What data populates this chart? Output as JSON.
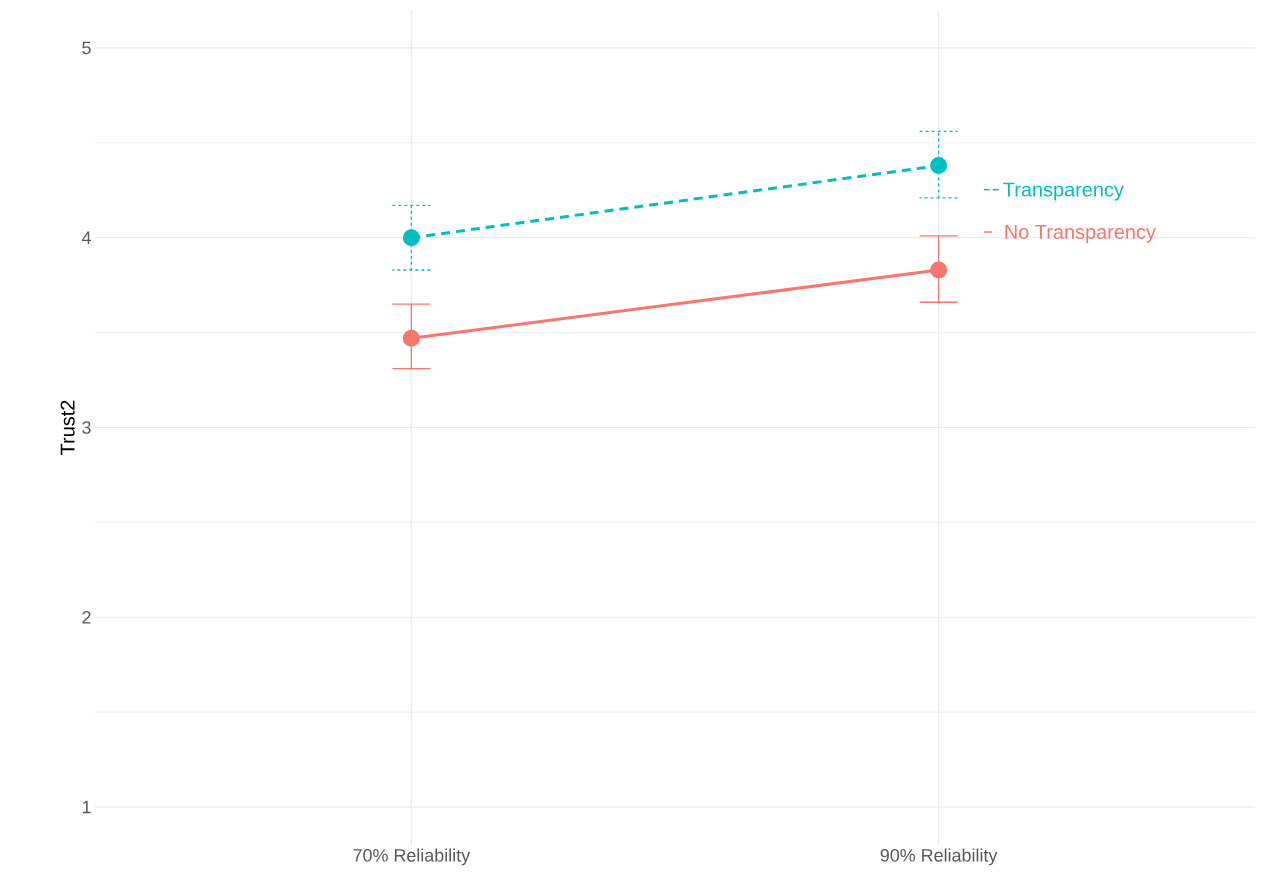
{
  "chart_data": {
    "type": "line",
    "ylabel": "Trust2",
    "categories": [
      "70% Reliability",
      "90% Reliability"
    ],
    "series": [
      {
        "name": "No Transparency",
        "color": "#f8766d",
        "line_style": "solid",
        "values": [
          3.47,
          3.83
        ],
        "errors": [
          [
            3.31,
            3.65
          ],
          [
            3.66,
            4.01
          ]
        ]
      },
      {
        "name": "Transparency",
        "color": "#00bfc4",
        "line_style": "dashed",
        "values": [
          4.0,
          4.38
        ],
        "errors": [
          [
            3.83,
            4.17
          ],
          [
            4.21,
            4.56
          ]
        ]
      }
    ],
    "ylim": [
      0.8,
      5.2
    ],
    "yticks": [
      1,
      2,
      3,
      4,
      5
    ],
    "grid": true,
    "marker": "circle",
    "legend": "right"
  }
}
